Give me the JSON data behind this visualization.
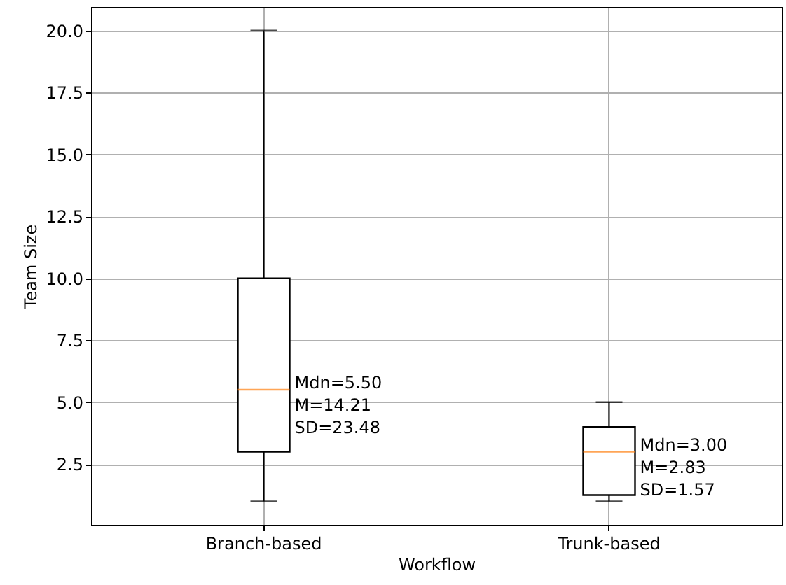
{
  "chart_data": {
    "type": "box",
    "xlabel": "Workflow",
    "ylabel": "Team Size",
    "categories": [
      "Branch-based",
      "Trunk-based"
    ],
    "boxes": [
      {
        "low": 1,
        "q1": 3,
        "median": 5.5,
        "q3": 10,
        "high": 20
      },
      {
        "low": 1,
        "q1": 1.25,
        "median": 3,
        "q3": 4,
        "high": 5
      }
    ],
    "ylim": [
      0.05,
      20.95
    ],
    "yticks": [
      {
        "value": 2.5,
        "label": "2.5"
      },
      {
        "value": 5,
        "label": "5.0"
      },
      {
        "value": 7.5,
        "label": "7.5"
      },
      {
        "value": 10,
        "label": "10.0"
      },
      {
        "value": 12.5,
        "label": "12.5"
      },
      {
        "value": 15,
        "label": "15.0"
      },
      {
        "value": 17.5,
        "label": "17.5"
      },
      {
        "value": 20,
        "label": "20.0"
      }
    ],
    "grid": true,
    "annotations": [
      "Mdn=5.50\nM=14.21\nSD=23.48",
      "Mdn=3.00\nM=2.83\nSD=1.57"
    ]
  }
}
